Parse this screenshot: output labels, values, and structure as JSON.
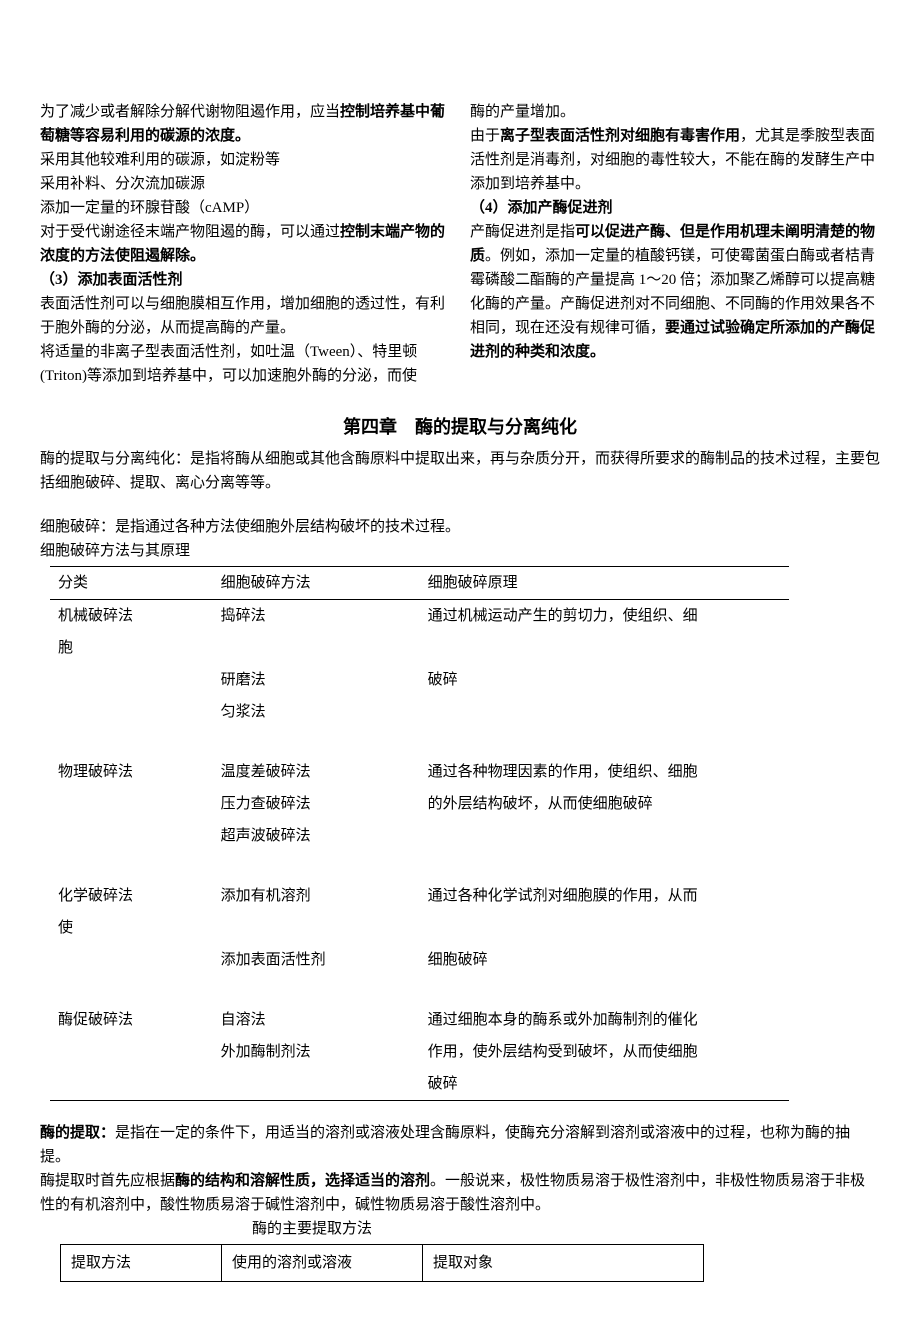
{
  "left_col": {
    "p1a": "为了减少或者解除分解代谢物阻遏作用，应当",
    "p1b": "控制培养基中葡萄糖等容易利用的碳源的浓度。",
    "p2": "采用其他较难利用的碳源，如淀粉等",
    "p3": "采用补料、分次流加碳源",
    "p4": "添加一定量的环腺苷酸（cAMP）",
    "p5a": "对于受代谢途径末端产物阻遏的酶，可以通过",
    "p5b": "控制末端产物的浓度的方法使阻遏解除。",
    "sub3": "（3）添加表面活性剂",
    "p6": "表面活性剂可以与细胞膜相互作用，增加细胞的透过性，有利于胞外酶的分泌，从而提高酶的产量。",
    "p7": "将适量的非离子型表面活性剂，如吐温（Tween）、特里顿(Triton)等添加到培养基中，可以加速胞外酶的分泌，而使"
  },
  "right_col": {
    "p1": "酶的产量增加。",
    "p2a": "由于",
    "p2b": "离子型表面活性剂对细胞有毒害作用",
    "p2c": "，尤其是季胺型表面活性剂是消毒剂，对细胞的毒性较大，不能在酶的发酵生产中添加到培养基中。",
    "sub4": "（4）添加产酶促进剂",
    "p3a": "产酶促进剂是指",
    "p3b": "可以促进产酶、但是作用机理未阐明清楚的物质",
    "p3c": "。例如，添加一定量的植酸钙镁，可使霉菌蛋白酶或者桔青霉磷酸二酯酶的产量提高 1～20 倍；添加聚乙烯醇可以提高糖化酶的产量。产酶促进剂对不同细胞、不同酶的作用效果各不相同，现在还没有规律可循，",
    "p3d": "要通过试验确定所添加的产酶促进剂的种类和浓度。"
  },
  "chapter": {
    "title": "第四章　酶的提取与分离纯化",
    "intro": "酶的提取与分离纯化：是指将酶从细胞或其他含酶原料中提取出来，再与杂质分开，而获得所要求的酶制品的技术过程，主要包括细胞破碎、提取、离心分离等等。",
    "cell_break": "细胞破碎：是指通过各种方法使细胞外层结构破坏的技术过程。",
    "table_caption": "细胞破碎方法与其原理"
  },
  "table1": {
    "headers": [
      "分类",
      "细胞破碎方法",
      "细胞破碎原理"
    ],
    "rows": [
      {
        "c1": "机械破碎法",
        "c2": "捣碎法",
        "c3": "通过机械运动产生的剪切力，使组织、细"
      },
      {
        "c1": "胞",
        "c2": "",
        "c3": ""
      },
      {
        "c1": "",
        "c2": "研磨法",
        "c3": "破碎"
      },
      {
        "c1": "",
        "c2": "匀浆法",
        "c3": ""
      },
      {
        "spacer": true
      },
      {
        "c1": "物理破碎法",
        "c2": "温度差破碎法",
        "c3": "通过各种物理因素的作用，使组织、细胞"
      },
      {
        "c1": "",
        "c2": "压力查破碎法",
        "c3": "的外层结构破坏，从而使细胞破碎"
      },
      {
        "c1": "",
        "c2": "超声波破碎法",
        "c3": ""
      },
      {
        "spacer": true
      },
      {
        "c1": "化学破碎法",
        "c2": "添加有机溶剂",
        "c3": "通过各种化学试剂对细胞膜的作用，从而"
      },
      {
        "c1": "使",
        "c2": "",
        "c3": ""
      },
      {
        "c1": "",
        "c2": "添加表面活性剂",
        "c3": "细胞破碎"
      },
      {
        "spacer": true
      },
      {
        "c1": "酶促破碎法",
        "c2": "自溶法",
        "c3": "通过细胞本身的酶系或外加酶制剂的催化"
      },
      {
        "c1": "",
        "c2": "外加酶制剂法",
        "c3": "作用，使外层结构受到破坏，从而使细胞"
      },
      {
        "c1": "",
        "c2": "",
        "c3": "破碎"
      }
    ]
  },
  "extraction": {
    "p1a": "酶的提取：",
    "p1b": "是指在一定的条件下，用适当的溶剂或溶液处理含酶原料，使酶充分溶解到溶剂或溶液中的过程，也称为酶的抽提。",
    "p2a": "酶提取时首先应根据",
    "p2b": "酶的结构和溶解性质，选择适当的溶剂",
    "p2c": "。一般说来，极性物质易溶于极性溶剂中，非极性物质易溶于非极性的有机溶剂中，酸性物质易溶于碱性溶剂中，碱性物质易溶于酸性溶剂中。",
    "table_caption": "酶的主要提取方法"
  },
  "table2": {
    "headers": [
      "提取方法",
      "使用的溶剂或溶液",
      "提取对象"
    ]
  }
}
